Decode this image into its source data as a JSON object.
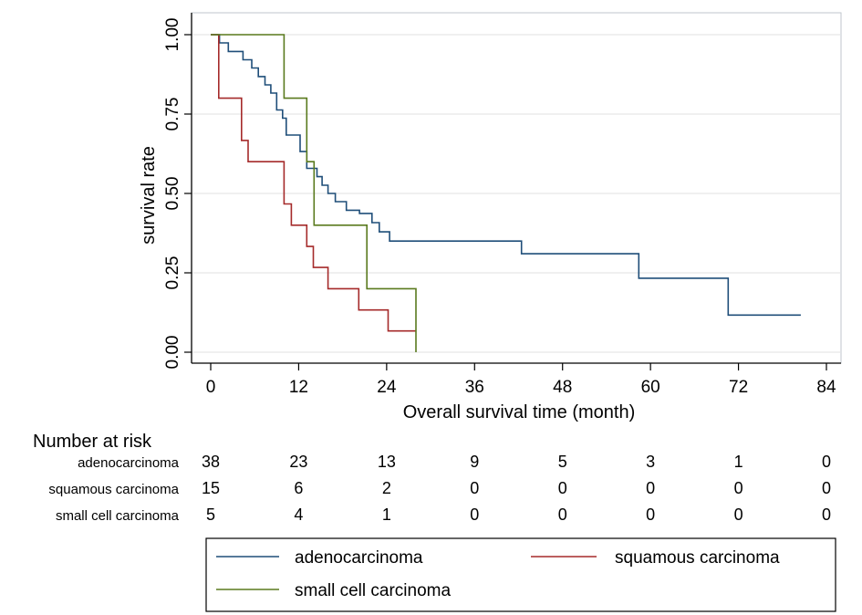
{
  "chart_data": {
    "type": "line",
    "subtype": "kaplan-meier step curves",
    "xlabel": "Overall survival time (month)",
    "ylabel": "survival rate",
    "xlim": [
      0,
      84
    ],
    "ylim": [
      0,
      1
    ],
    "x_ticks": [
      0,
      12,
      24,
      36,
      48,
      60,
      72,
      84
    ],
    "y_ticks": [
      "0.00",
      "0.25",
      "0.50",
      "0.75",
      "1.00"
    ],
    "grid": "horizontal",
    "series": [
      {
        "name": "adenocarcinoma",
        "color": "#1f4e79",
        "points": [
          [
            0,
            1
          ],
          [
            1.2,
            1
          ],
          [
            1.2,
            0.974
          ],
          [
            2.4,
            0.974
          ],
          [
            2.4,
            0.947
          ],
          [
            4.4,
            0.947
          ],
          [
            4.4,
            0.921
          ],
          [
            5.6,
            0.921
          ],
          [
            5.6,
            0.895
          ],
          [
            6.5,
            0.895
          ],
          [
            6.5,
            0.868
          ],
          [
            7.4,
            0.868
          ],
          [
            7.4,
            0.842
          ],
          [
            8.2,
            0.842
          ],
          [
            8.2,
            0.816
          ],
          [
            9.0,
            0.816
          ],
          [
            9.0,
            0.763
          ],
          [
            9.8,
            0.763
          ],
          [
            9.8,
            0.737
          ],
          [
            10.3,
            0.737
          ],
          [
            10.3,
            0.684
          ],
          [
            12.2,
            0.684
          ],
          [
            12.2,
            0.632
          ],
          [
            13.1,
            0.632
          ],
          [
            13.1,
            0.579
          ],
          [
            14.5,
            0.579
          ],
          [
            14.5,
            0.553
          ],
          [
            15.2,
            0.553
          ],
          [
            15.2,
            0.526
          ],
          [
            16.0,
            0.526
          ],
          [
            16.0,
            0.5
          ],
          [
            17.0,
            0.5
          ],
          [
            17.0,
            0.474
          ],
          [
            18.5,
            0.474
          ],
          [
            18.5,
            0.447
          ],
          [
            20.3,
            0.447
          ],
          [
            20.3,
            0.437
          ],
          [
            22.0,
            0.437
          ],
          [
            22.0,
            0.408
          ],
          [
            23.0,
            0.408
          ],
          [
            23.0,
            0.379
          ],
          [
            24.4,
            0.379
          ],
          [
            24.4,
            0.35
          ],
          [
            42.4,
            0.35
          ],
          [
            42.4,
            0.31
          ],
          [
            58.4,
            0.31
          ],
          [
            58.4,
            0.233
          ],
          [
            70.6,
            0.233
          ],
          [
            70.6,
            0.117
          ],
          [
            80.5,
            0.117
          ]
        ]
      },
      {
        "name": "squamous carcinoma",
        "color": "#a52a2a",
        "points": [
          [
            0,
            1
          ],
          [
            1.1,
            1
          ],
          [
            1.1,
            0.8
          ],
          [
            4.2,
            0.8
          ],
          [
            4.2,
            0.667
          ],
          [
            5.1,
            0.667
          ],
          [
            5.1,
            0.6
          ],
          [
            10.0,
            0.6
          ],
          [
            10.0,
            0.467
          ],
          [
            11.0,
            0.467
          ],
          [
            11.0,
            0.4
          ],
          [
            13.1,
            0.4
          ],
          [
            13.1,
            0.333
          ],
          [
            14.0,
            0.333
          ],
          [
            14.0,
            0.267
          ],
          [
            16.0,
            0.267
          ],
          [
            16.0,
            0.2
          ],
          [
            20.2,
            0.2
          ],
          [
            20.2,
            0.133
          ],
          [
            24.2,
            0.133
          ],
          [
            24.2,
            0.067
          ],
          [
            28.0,
            0.067
          ]
        ]
      },
      {
        "name": "small cell carcinoma",
        "color": "#5a7a1e",
        "points": [
          [
            0,
            1
          ],
          [
            10.0,
            1
          ],
          [
            10.0,
            0.8
          ],
          [
            13.1,
            0.8
          ],
          [
            13.1,
            0.6
          ],
          [
            14.1,
            0.6
          ],
          [
            14.1,
            0.4
          ],
          [
            21.3,
            0.4
          ],
          [
            21.3,
            0.2
          ],
          [
            28.0,
            0.2
          ],
          [
            28.0,
            0.0
          ]
        ]
      }
    ],
    "risk_table": {
      "title": "Number at risk",
      "times": [
        0,
        12,
        24,
        36,
        48,
        60,
        72,
        84
      ],
      "rows": [
        {
          "name": "adenocarcinoma",
          "values": [
            38,
            23,
            13,
            9,
            5,
            3,
            1,
            0
          ]
        },
        {
          "name": "squamous carcinoma",
          "values": [
            15,
            6,
            2,
            0,
            0,
            0,
            0,
            0
          ]
        },
        {
          "name": "small cell carcinoma",
          "values": [
            5,
            4,
            1,
            0,
            0,
            0,
            0,
            0
          ]
        }
      ]
    },
    "legend": {
      "placement": "bottom",
      "entries": [
        "adenocarcinoma",
        "squamous carcinoma",
        "small cell carcinoma"
      ]
    }
  }
}
